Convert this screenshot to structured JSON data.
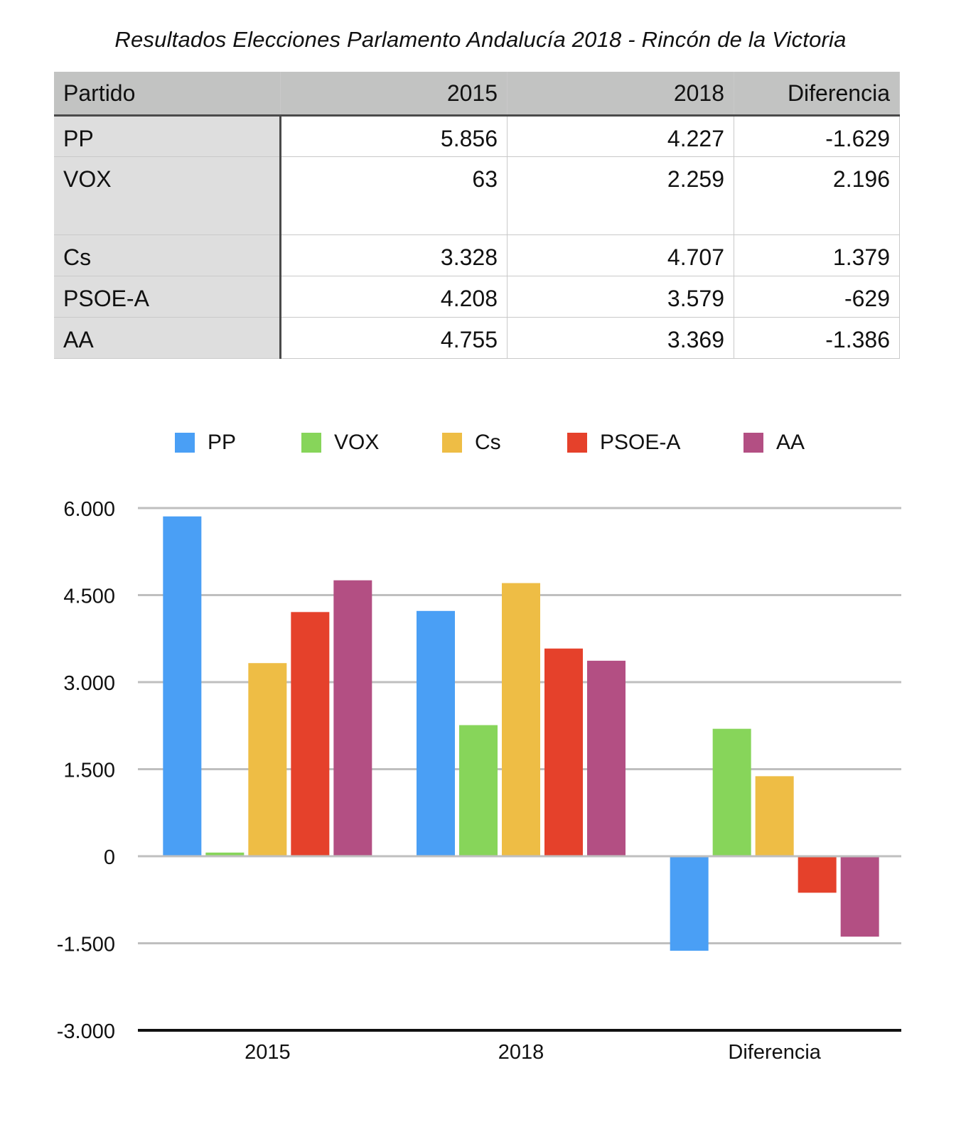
{
  "title": "Resultados Elecciones Parlamento Andalucía 2018 - Rincón de la Victoria",
  "table": {
    "headers": [
      "Partido",
      "2015",
      "2018",
      "Diferencia"
    ],
    "rows": [
      {
        "party": "PP",
        "v2015": "5.856",
        "v2018": "4.227",
        "diff": "-1.629"
      },
      {
        "party": "VOX",
        "v2015": "63",
        "v2018": "2.259",
        "diff": "2.196"
      },
      {
        "party": "Cs",
        "v2015": "3.328",
        "v2018": "4.707",
        "diff": "1.379"
      },
      {
        "party": "PSOE-A",
        "v2015": "4.208",
        "v2018": "3.579",
        "diff": "-629"
      },
      {
        "party": "AA",
        "v2015": "4.755",
        "v2018": "3.369",
        "diff": "-1.386"
      }
    ]
  },
  "chart_data": {
    "type": "bar",
    "categories": [
      "2015",
      "2018",
      "Diferencia"
    ],
    "series": [
      {
        "name": "PP",
        "color": "#4a9ff5",
        "values": [
          5856,
          4227,
          -1629
        ]
      },
      {
        "name": "VOX",
        "color": "#87d55a",
        "values": [
          63,
          2259,
          2196
        ]
      },
      {
        "name": "Cs",
        "color": "#eebd45",
        "values": [
          3328,
          4707,
          1379
        ]
      },
      {
        "name": "PSOE-A",
        "color": "#e5412b",
        "values": [
          4208,
          3579,
          -629
        ]
      },
      {
        "name": "AA",
        "color": "#b34f83",
        "values": [
          4755,
          3369,
          -1386
        ]
      }
    ],
    "ylim": [
      -3000,
      6000
    ],
    "yticks": [
      6000,
      4500,
      3000,
      1500,
      0,
      -1500,
      -3000
    ],
    "ytick_labels": [
      "6.000",
      "4.500",
      "3.000",
      "1.500",
      "0",
      "-1.500",
      "-3.000"
    ],
    "grid": true,
    "legend_position": "top"
  }
}
